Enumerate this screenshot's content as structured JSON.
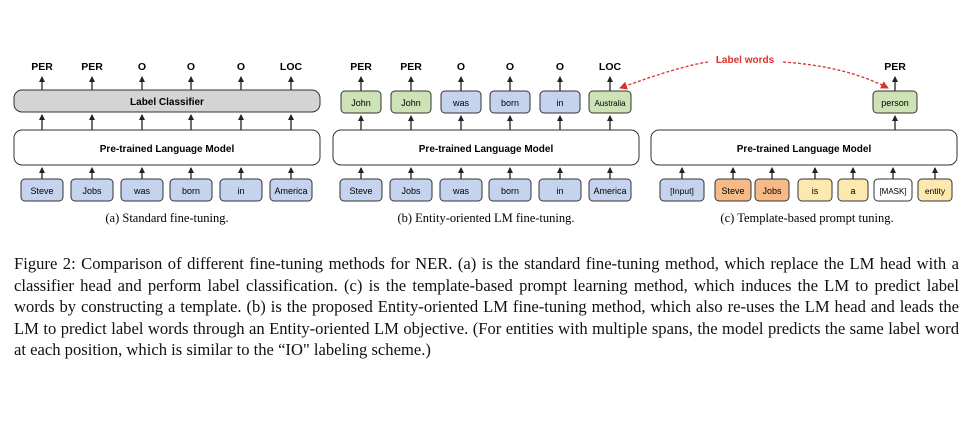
{
  "panel_a": {
    "output_labels": [
      "PER",
      "PER",
      "O",
      "O",
      "O",
      "LOC"
    ],
    "head_label": "Label Classifier",
    "model_label": "Pre-trained Language Model",
    "input_tokens": [
      "Steve",
      "Jobs",
      "was",
      "born",
      "in",
      "America"
    ],
    "subcaption": "(a) Standard fine-tuning."
  },
  "panel_b": {
    "output_labels": [
      "PER",
      "PER",
      "O",
      "O",
      "O",
      "LOC"
    ],
    "output_tokens": [
      "John",
      "John",
      "was",
      "born",
      "in",
      "Australia"
    ],
    "output_token_kind": [
      "label",
      "label",
      "word",
      "word",
      "word",
      "label"
    ],
    "model_label": "Pre-trained Language Model",
    "input_tokens": [
      "Steve",
      "Jobs",
      "was",
      "born",
      "in",
      "America"
    ],
    "subcaption": "(b) Entity-oriented LM fine-tuning."
  },
  "panel_c": {
    "label_words_annotation": "Label words",
    "output_label": "PER",
    "output_token": "person",
    "model_label": "Pre-trained Language Model",
    "input_tokens": [
      "[Input]",
      "Steve",
      "Jobs",
      "is",
      "a",
      "[MASK]",
      "entity"
    ],
    "input_token_kind": [
      "input",
      "entity",
      "entity",
      "template",
      "template",
      "mask",
      "template"
    ],
    "subcaption": "(c) Template-based prompt tuning."
  },
  "colors": {
    "input_token": "#c5d3ee",
    "label_word": "#cde3b5",
    "entity_token": "#f5ba88",
    "template_token": "#fde9b0",
    "classifier": "#d4d4d4",
    "arrow_red": "#d9312b"
  },
  "caption": {
    "text": "Figure 2: Comparison of different fine-tuning methods for NER. (a) is the standard fine-tuning method, which replace the LM head with a classifier head and perform label classification. (c) is the template-based prompt learning method, which induces the LM to predict label words by constructing a template. (b) is the proposed Entity-oriented LM fine-tuning method, which also re-uses the LM head and leads the LM to predict label words through an Entity-oriented LM objective. (For entities with multiple spans, the model predicts the same label word at each position, which is similar to the “IO\" labeling scheme.)"
  }
}
